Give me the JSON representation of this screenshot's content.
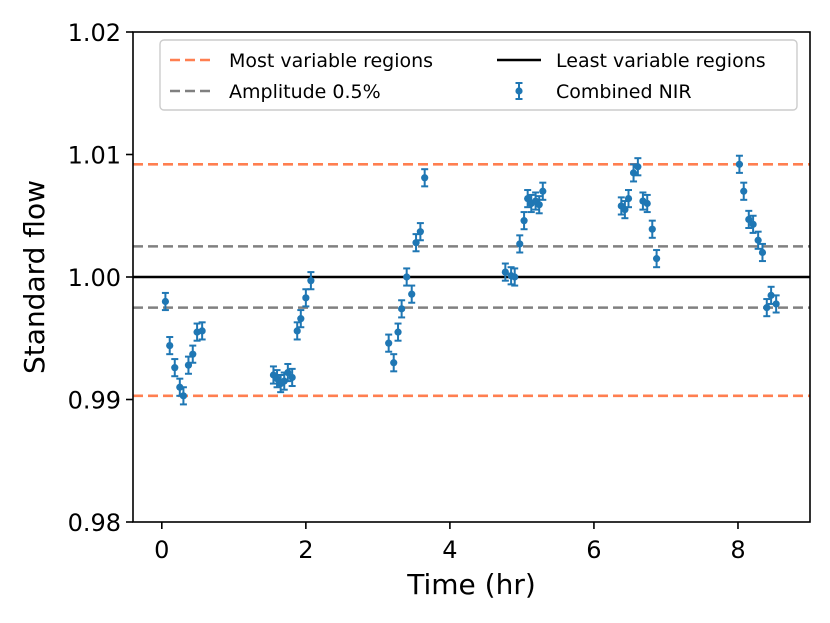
{
  "chart_data": {
    "type": "scatter",
    "xlabel": "Time (hr)",
    "ylabel": "Standard flow",
    "xlim": [
      -0.4,
      9.0
    ],
    "ylim": [
      0.98,
      1.02
    ],
    "xticks": [
      0,
      2,
      4,
      6,
      8
    ],
    "xtick_labels": [
      "0",
      "2",
      "4",
      "6",
      "8"
    ],
    "yticks": [
      0.98,
      0.99,
      1.0,
      1.01,
      1.02
    ],
    "ytick_labels": [
      "0.98",
      "0.99",
      "1.00",
      "1.01",
      "1.02"
    ],
    "grid": false,
    "legend_position": "top-right",
    "reference_lines": [
      {
        "name": "Most variable regions",
        "y": 1.0092,
        "style": "dashed",
        "color": "#ff7f50"
      },
      {
        "name": "Most variable regions",
        "y": 0.9903,
        "style": "dashed",
        "color": "#ff7f50"
      },
      {
        "name": "Amplitude 0.5%",
        "y": 1.0025,
        "style": "dashed",
        "color": "#808080"
      },
      {
        "name": "Amplitude 0.5%",
        "y": 0.9975,
        "style": "dashed",
        "color": "#808080"
      },
      {
        "name": "Least variable regions",
        "y": 1.0,
        "style": "solid",
        "color": "#000000"
      }
    ],
    "legend": [
      {
        "label": "Most variable regions",
        "kind": "dashed",
        "color": "#ff7f50"
      },
      {
        "label": "Least variable regions",
        "kind": "solid",
        "color": "#000000"
      },
      {
        "label": "Amplitude 0.5%",
        "kind": "dashed",
        "color": "#808080"
      },
      {
        "label": "Combined NIR",
        "kind": "errorbar",
        "color": "#1f77b4"
      }
    ],
    "series": [
      {
        "name": "Combined NIR",
        "color": "#1f77b4",
        "error": 0.0007,
        "points": [
          [
            0.05,
            0.998
          ],
          [
            0.11,
            0.9944
          ],
          [
            0.18,
            0.9926
          ],
          [
            0.25,
            0.991
          ],
          [
            0.3,
            0.9903
          ],
          [
            0.37,
            0.9928
          ],
          [
            0.43,
            0.9937
          ],
          [
            0.49,
            0.9955
          ],
          [
            0.56,
            0.9956
          ],
          [
            1.55,
            0.992
          ],
          [
            1.6,
            0.9917
          ],
          [
            1.65,
            0.9913
          ],
          [
            1.7,
            0.9915
          ],
          [
            1.75,
            0.9922
          ],
          [
            1.81,
            0.9918
          ],
          [
            1.88,
            0.9956
          ],
          [
            1.93,
            0.9966
          ],
          [
            2.0,
            0.9983
          ],
          [
            2.07,
            0.9997
          ],
          [
            3.15,
            0.9946
          ],
          [
            3.22,
            0.993
          ],
          [
            3.28,
            0.9955
          ],
          [
            3.33,
            0.9974
          ],
          [
            3.4,
            1.0
          ],
          [
            3.47,
            0.9986
          ],
          [
            3.53,
            1.0028
          ],
          [
            3.59,
            1.0037
          ],
          [
            3.65,
            1.0081
          ],
          [
            4.77,
            1.0004
          ],
          [
            4.85,
            1.0001
          ],
          [
            4.9,
            1.0
          ],
          [
            4.97,
            1.0027
          ],
          [
            5.03,
            1.0046
          ],
          [
            5.08,
            1.0064
          ],
          [
            5.13,
            1.006
          ],
          [
            5.19,
            1.0062
          ],
          [
            5.24,
            1.0059
          ],
          [
            5.29,
            1.007
          ],
          [
            6.38,
            1.0058
          ],
          [
            6.43,
            1.0055
          ],
          [
            6.48,
            1.0064
          ],
          [
            6.55,
            1.0085
          ],
          [
            6.61,
            1.009
          ],
          [
            6.68,
            1.0062
          ],
          [
            6.74,
            1.006
          ],
          [
            6.81,
            1.0039
          ],
          [
            6.87,
            1.0015
          ],
          [
            8.02,
            1.0092
          ],
          [
            8.08,
            1.007
          ],
          [
            8.15,
            1.0047
          ],
          [
            8.21,
            1.0043
          ],
          [
            8.28,
            1.003
          ],
          [
            8.34,
            1.002
          ],
          [
            8.4,
            0.9975
          ],
          [
            8.46,
            0.9985
          ],
          [
            8.53,
            0.9978
          ]
        ]
      }
    ]
  }
}
